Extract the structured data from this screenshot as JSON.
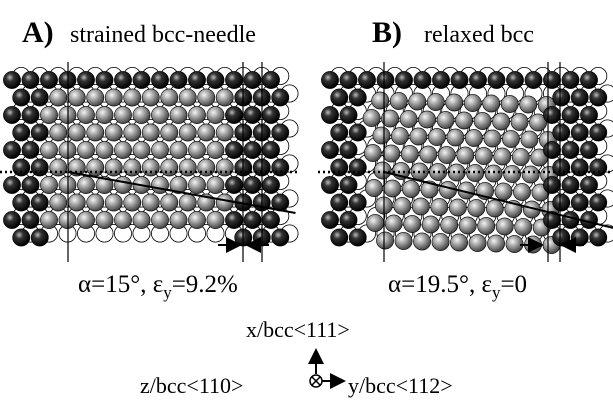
{
  "panels": [
    {
      "letter": "A)",
      "title": "strained bcc-needle",
      "caption": {
        "pre": "α=15°, ε",
        "sub": "y",
        "post": "=9.2%"
      }
    },
    {
      "letter": "B)",
      "title": "relaxed bcc",
      "caption": {
        "pre": "α=19.5°, ε",
        "sub": "y",
        "post": "=0"
      }
    }
  ],
  "axes": {
    "x": "x/bcc<111>",
    "z": "z/bcc<110>",
    "y": "y/bcc<112>"
  }
}
